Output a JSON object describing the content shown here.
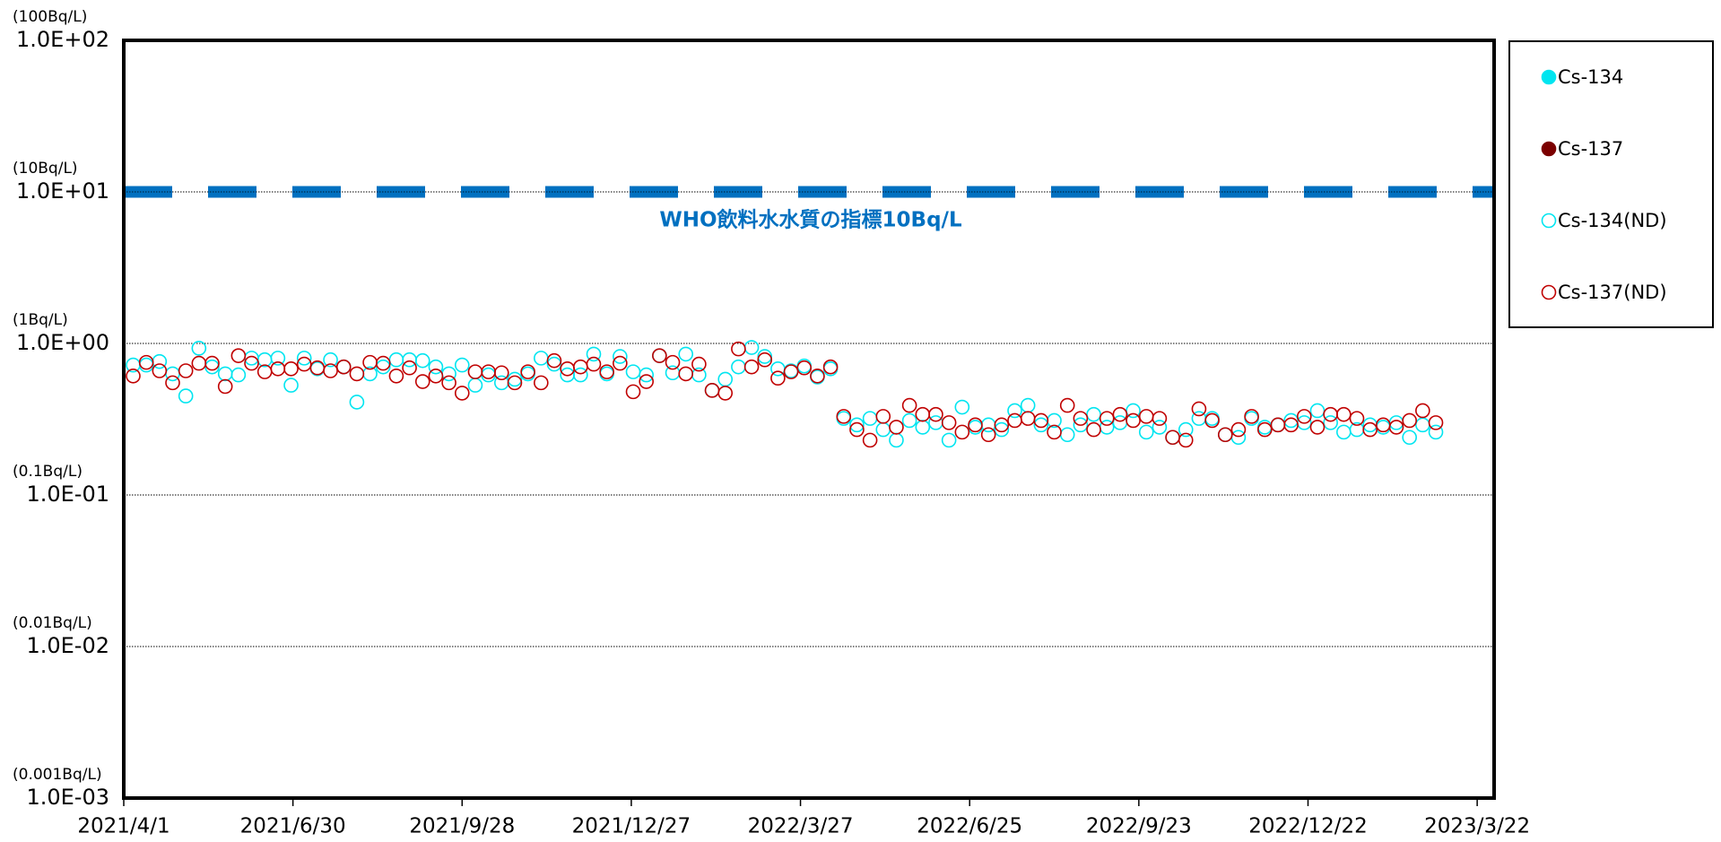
{
  "chart_data": {
    "type": "scatter",
    "log_y": true,
    "grid": true,
    "legend_position": "right",
    "xlim": [
      "2021/4/1",
      "2023/3/31"
    ],
    "xticks": [
      "2021/4/1",
      "2021/6/30",
      "2021/9/28",
      "2021/12/27",
      "2022/3/27",
      "2022/6/25",
      "2022/9/23",
      "2022/12/22",
      "2023/3/22"
    ],
    "ylim": [
      0.001,
      100
    ],
    "yticks": [
      {
        "value": 0.001,
        "label": "1.0E-03"
      },
      {
        "value": 0.01,
        "label": "1.0E-02"
      },
      {
        "value": 0.1,
        "label": "1.0E-01"
      },
      {
        "value": 1,
        "label": "1.0E+00"
      },
      {
        "value": 10,
        "label": "1.0E+01"
      },
      {
        "value": 100,
        "label": "1.0E+02"
      }
    ],
    "ytick_units": [
      "(0.001Bq/L)",
      "(0.01Bq/L)",
      "(0.1Bq/L)",
      "(1Bq/L)",
      "(10Bq/L)",
      "(100Bq/L)"
    ],
    "reference_line": {
      "value": 10,
      "label": "WHO飲料水水質の指標10Bq/L",
      "color": "#0070c0"
    },
    "series": [
      {
        "name": "Cs-134",
        "color": "#00e5f0",
        "filled": true,
        "x": [],
        "values": []
      },
      {
        "name": "Cs-137",
        "color": "#7b0000",
        "filled": true,
        "x": [],
        "values": []
      },
      {
        "name": "Cs-134(ND)",
        "color": "#00e5f0",
        "filled": false,
        "x": [
          "2021/4/6",
          "2021/4/13",
          "2021/4/20",
          "2021/4/27",
          "2021/5/4",
          "2021/5/11",
          "2021/5/18",
          "2021/5/25",
          "2021/6/1",
          "2021/6/8",
          "2021/6/15",
          "2021/6/22",
          "2021/6/29",
          "2021/7/6",
          "2021/7/13",
          "2021/7/20",
          "2021/7/27",
          "2021/8/3",
          "2021/8/10",
          "2021/8/17",
          "2021/8/24",
          "2021/8/31",
          "2021/9/7",
          "2021/9/14",
          "2021/9/21",
          "2021/9/28",
          "2021/10/5",
          "2021/10/12",
          "2021/10/19",
          "2021/10/26",
          "2021/11/2",
          "2021/11/9",
          "2021/11/16",
          "2021/11/23",
          "2021/11/30",
          "2021/12/7",
          "2021/12/14",
          "2021/12/21",
          "2021/12/28",
          "2022/1/4",
          "2022/1/11",
          "2022/1/18",
          "2022/1/25",
          "2022/2/1",
          "2022/2/8",
          "2022/2/15",
          "2022/2/22",
          "2022/3/1",
          "2022/3/8",
          "2022/3/15",
          "2022/3/22",
          "2022/3/29",
          "2022/4/5",
          "2022/4/12",
          "2022/4/19",
          "2022/4/26",
          "2022/5/3",
          "2022/5/10",
          "2022/5/17",
          "2022/5/24",
          "2022/5/31",
          "2022/6/7",
          "2022/6/14",
          "2022/6/21",
          "2022/6/28",
          "2022/7/5",
          "2022/7/12",
          "2022/7/19",
          "2022/7/26",
          "2022/8/2",
          "2022/8/9",
          "2022/8/16",
          "2022/8/23",
          "2022/8/30",
          "2022/9/6",
          "2022/9/13",
          "2022/9/20",
          "2022/9/27",
          "2022/10/4",
          "2022/10/11",
          "2022/10/18",
          "2022/10/25",
          "2022/11/1",
          "2022/11/8",
          "2022/11/15",
          "2022/11/22",
          "2022/11/29",
          "2022/12/6",
          "2022/12/13",
          "2022/12/20",
          "2022/12/27",
          "2023/1/3",
          "2023/1/10",
          "2023/1/17",
          "2023/1/24",
          "2023/1/31",
          "2023/2/7",
          "2023/2/14",
          "2023/2/21",
          "2023/2/28"
        ],
        "values": [
          0.72,
          0.72,
          0.76,
          0.63,
          0.45,
          0.93,
          0.7,
          0.63,
          0.62,
          0.8,
          0.78,
          0.8,
          0.53,
          0.8,
          0.68,
          0.78,
          0.7,
          0.41,
          0.63,
          0.7,
          0.78,
          0.78,
          0.77,
          0.7,
          0.63,
          0.72,
          0.53,
          0.62,
          0.55,
          0.58,
          0.63,
          0.8,
          0.73,
          0.62,
          0.62,
          0.85,
          0.63,
          0.82,
          0.65,
          0.62,
          0.83,
          0.64,
          0.85,
          0.62,
          0.49,
          0.58,
          0.7,
          0.94,
          0.82,
          0.68,
          0.66,
          0.71,
          0.6,
          0.68,
          0.32,
          0.29,
          0.32,
          0.27,
          0.23,
          0.31,
          0.28,
          0.3,
          0.23,
          0.38,
          0.28,
          0.29,
          0.27,
          0.36,
          0.39,
          0.29,
          0.31,
          0.25,
          0.29,
          0.34,
          0.28,
          0.3,
          0.36,
          0.26,
          0.28,
          0.24,
          0.27,
          0.32,
          0.32,
          0.25,
          0.24,
          0.32,
          0.28,
          0.29,
          0.31,
          0.3,
          0.36,
          0.3,
          0.26,
          0.27,
          0.29,
          0.28,
          0.3,
          0.24,
          0.29,
          0.26
        ]
      },
      {
        "name": "Cs-137(ND)",
        "color": "#c00000",
        "filled": false,
        "x": [
          "2021/4/6",
          "2021/4/13",
          "2021/4/20",
          "2021/4/27",
          "2021/5/4",
          "2021/5/11",
          "2021/5/18",
          "2021/5/25",
          "2021/6/1",
          "2021/6/8",
          "2021/6/15",
          "2021/6/22",
          "2021/6/29",
          "2021/7/6",
          "2021/7/13",
          "2021/7/20",
          "2021/7/27",
          "2021/8/3",
          "2021/8/10",
          "2021/8/17",
          "2021/8/24",
          "2021/8/31",
          "2021/9/7",
          "2021/9/14",
          "2021/9/21",
          "2021/9/28",
          "2021/10/5",
          "2021/10/12",
          "2021/10/19",
          "2021/10/26",
          "2021/11/2",
          "2021/11/9",
          "2021/11/16",
          "2021/11/23",
          "2021/11/30",
          "2021/12/7",
          "2021/12/14",
          "2021/12/21",
          "2021/12/28",
          "2022/1/4",
          "2022/1/11",
          "2022/1/18",
          "2022/1/25",
          "2022/2/1",
          "2022/2/8",
          "2022/2/15",
          "2022/2/22",
          "2022/3/1",
          "2022/3/8",
          "2022/3/15",
          "2022/3/22",
          "2022/3/29",
          "2022/4/5",
          "2022/4/12",
          "2022/4/19",
          "2022/4/26",
          "2022/5/3",
          "2022/5/10",
          "2022/5/17",
          "2022/5/24",
          "2022/5/31",
          "2022/6/7",
          "2022/6/14",
          "2022/6/21",
          "2022/6/28",
          "2022/7/5",
          "2022/7/12",
          "2022/7/19",
          "2022/7/26",
          "2022/8/2",
          "2022/8/9",
          "2022/8/16",
          "2022/8/23",
          "2022/8/30",
          "2022/9/6",
          "2022/9/13",
          "2022/9/20",
          "2022/9/27",
          "2022/10/4",
          "2022/10/11",
          "2022/10/18",
          "2022/10/25",
          "2022/11/1",
          "2022/11/8",
          "2022/11/15",
          "2022/11/22",
          "2022/11/29",
          "2022/12/6",
          "2022/12/13",
          "2022/12/20",
          "2022/12/27",
          "2023/1/3",
          "2023/1/10",
          "2023/1/17",
          "2023/1/24",
          "2023/1/31",
          "2023/2/7",
          "2023/2/14",
          "2023/2/21",
          "2023/2/28"
        ],
        "values": [
          0.61,
          0.75,
          0.66,
          0.55,
          0.66,
          0.74,
          0.74,
          0.52,
          0.83,
          0.74,
          0.65,
          0.68,
          0.68,
          0.73,
          0.69,
          0.66,
          0.7,
          0.63,
          0.75,
          0.74,
          0.61,
          0.69,
          0.56,
          0.61,
          0.55,
          0.47,
          0.65,
          0.65,
          0.64,
          0.55,
          0.65,
          0.55,
          0.77,
          0.68,
          0.7,
          0.73,
          0.65,
          0.74,
          0.48,
          0.56,
          0.83,
          0.75,
          0.63,
          0.73,
          0.49,
          0.47,
          0.92,
          0.7,
          0.78,
          0.59,
          0.65,
          0.69,
          0.61,
          0.7,
          0.33,
          0.27,
          0.23,
          0.33,
          0.28,
          0.39,
          0.34,
          0.34,
          0.3,
          0.26,
          0.29,
          0.25,
          0.29,
          0.31,
          0.32,
          0.31,
          0.26,
          0.39,
          0.32,
          0.27,
          0.32,
          0.34,
          0.31,
          0.33,
          0.32,
          0.24,
          0.23,
          0.37,
          0.31,
          0.25,
          0.27,
          0.33,
          0.27,
          0.29,
          0.29,
          0.33,
          0.28,
          0.34,
          0.34,
          0.32,
          0.27,
          0.29,
          0.28,
          0.31,
          0.36,
          0.3
        ]
      }
    ]
  }
}
